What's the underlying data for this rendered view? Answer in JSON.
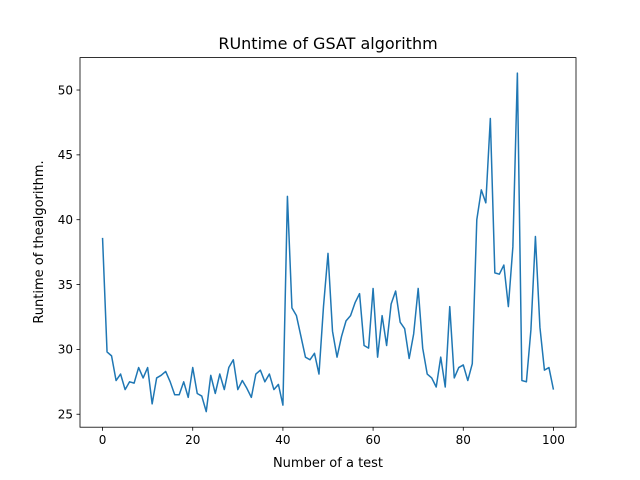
{
  "chart_data": {
    "type": "line",
    "title": "RUntime of GSAT algorithm",
    "xlabel": "Number of a test",
    "ylabel": "Runtime of thealgorithm.",
    "xlim": [
      -5,
      105
    ],
    "ylim": [
      24.0,
      52.5
    ],
    "xticks": [
      0,
      20,
      40,
      60,
      80,
      100
    ],
    "yticks": [
      25,
      30,
      35,
      40,
      45,
      50
    ],
    "grid": false,
    "line_color": "#1f77b4",
    "x": [
      0,
      1,
      2,
      3,
      4,
      5,
      6,
      7,
      8,
      9,
      10,
      11,
      12,
      13,
      14,
      15,
      16,
      17,
      18,
      19,
      20,
      21,
      22,
      23,
      24,
      25,
      26,
      27,
      28,
      29,
      30,
      31,
      32,
      33,
      34,
      35,
      36,
      37,
      38,
      39,
      40,
      41,
      42,
      43,
      44,
      45,
      46,
      47,
      48,
      49,
      50,
      51,
      52,
      53,
      54,
      55,
      56,
      57,
      58,
      59,
      60,
      61,
      62,
      63,
      64,
      65,
      66,
      67,
      68,
      69,
      70,
      71,
      72,
      73,
      74,
      75,
      76,
      77,
      78,
      79,
      80,
      81,
      82,
      83,
      84,
      85,
      86,
      87,
      88,
      89,
      90,
      91,
      92,
      93,
      94,
      95,
      96,
      97,
      98,
      99,
      100
    ],
    "series": [
      {
        "values": [
          38.6,
          29.8,
          29.5,
          27.6,
          28.1,
          26.9,
          27.5,
          27.4,
          28.6,
          27.8,
          28.6,
          25.8,
          27.8,
          28.0,
          28.3,
          27.5,
          26.5,
          26.5,
          27.5,
          26.3,
          28.6,
          26.6,
          26.4,
          25.2,
          28.0,
          26.6,
          28.1,
          26.9,
          28.6,
          29.2,
          26.9,
          27.6,
          27.0,
          26.3,
          28.1,
          28.4,
          27.5,
          28.1,
          26.9,
          27.3,
          25.7,
          41.8,
          33.2,
          32.6,
          31.0,
          29.4,
          29.2,
          29.7,
          28.1,
          33.3,
          37.4,
          31.4,
          29.4,
          31.0,
          32.2,
          32.6,
          33.6,
          34.3,
          30.3,
          30.1,
          34.7,
          29.4,
          32.6,
          30.3,
          33.5,
          34.5,
          32.1,
          31.6,
          29.3,
          31.2,
          34.7,
          30.1,
          28.1,
          27.8,
          27.1,
          29.4,
          27.1,
          33.3,
          27.8,
          28.6,
          28.8,
          27.6,
          28.9,
          40.0,
          42.3,
          41.3,
          47.8,
          35.9,
          35.8,
          36.5,
          33.3,
          37.9,
          51.3,
          27.6,
          27.5,
          31.5,
          38.7,
          31.7,
          28.4,
          28.6,
          26.9
        ]
      }
    ]
  }
}
